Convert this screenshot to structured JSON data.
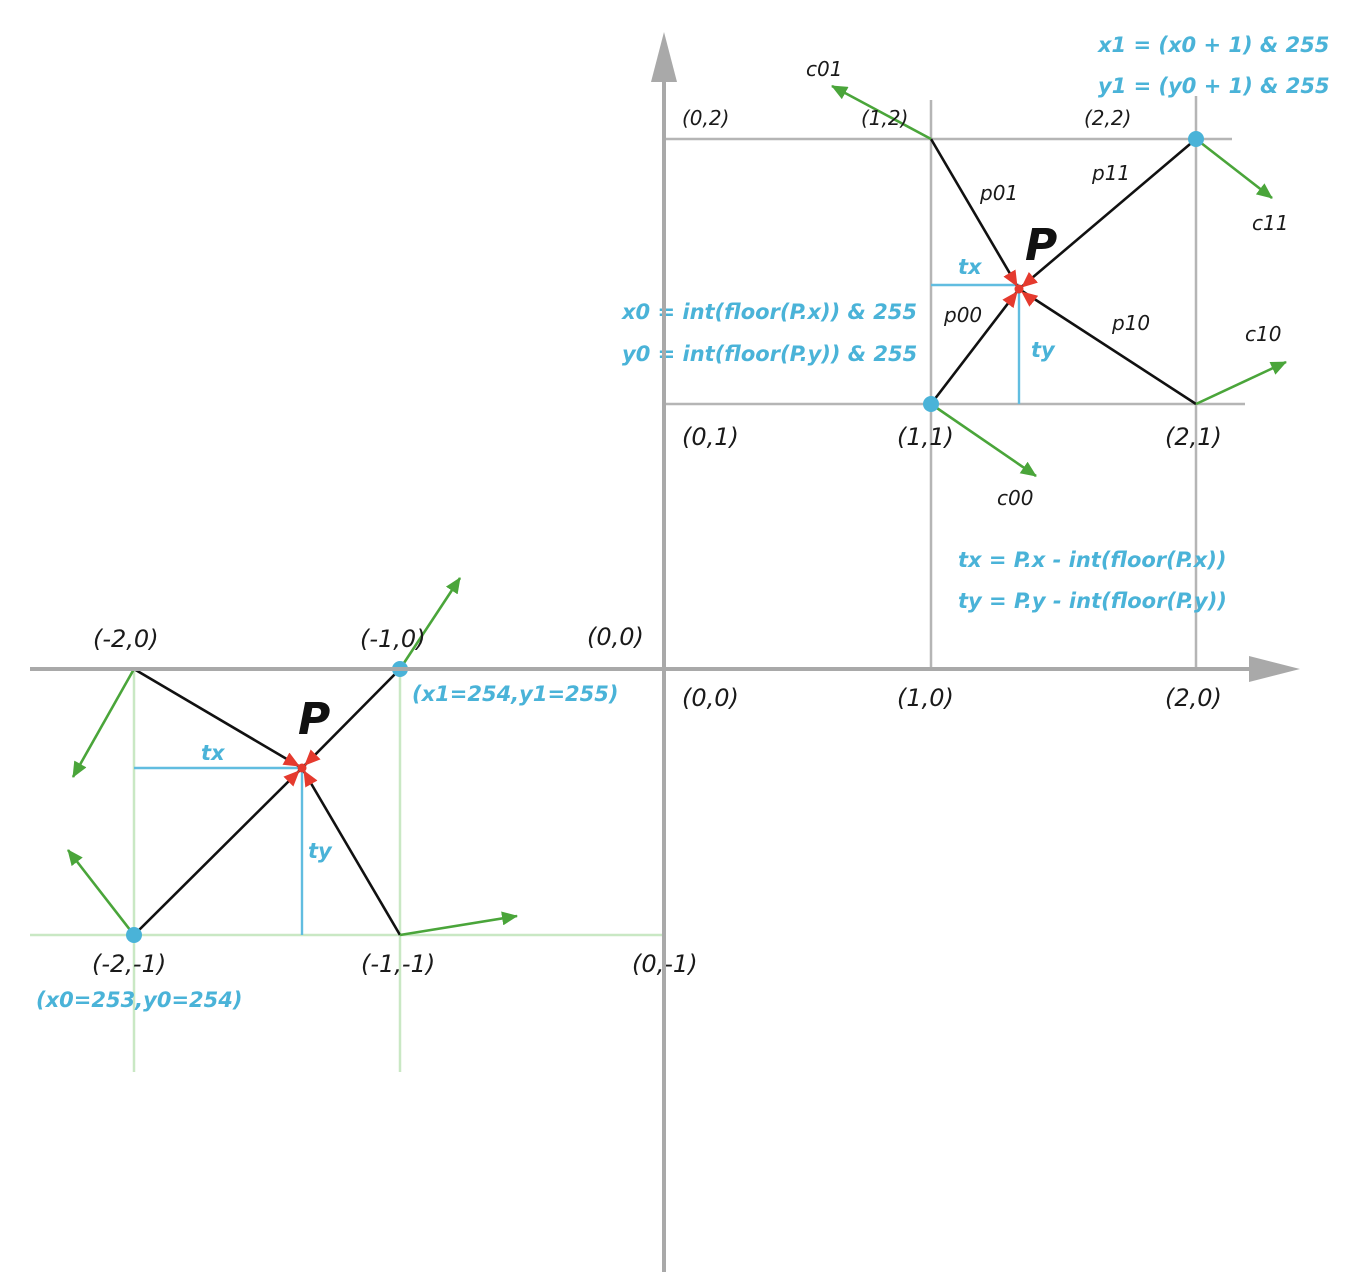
{
  "colors": {
    "axis": "#a9a9a9",
    "grid": "#b5b5b5",
    "grid_green": "#c9e8c4",
    "vector": "#111111",
    "gradient": "#4aa53a",
    "highlight": "#4ab3d8",
    "point": "#e53a2e"
  },
  "top_grid": {
    "labels": {
      "c01": "c01",
      "c11": "c11",
      "c10": "c10",
      "c00": "c00",
      "p01": "p01",
      "p11": "p11",
      "p00": "p00",
      "p10": "p10",
      "tx": "tx",
      "ty": "ty",
      "P": "P",
      "pt_0_2": "(0,2)",
      "pt_1_2": "(1,2)",
      "pt_2_2": "(2,2)",
      "pt_0_1": "(0,1)",
      "pt_1_1": "(1,1)",
      "pt_2_1": "(2,1)"
    },
    "formulas": {
      "x1": "x1 = (x0 + 1) & 255",
      "y1": "y1 = (y0 + 1) & 255",
      "x0": "x0 = int(floor(P.x)) & 255",
      "y0": "y0 = int(floor(P.y)) & 255",
      "tx": "tx = P.x - int(floor(P.x))",
      "ty": "ty = P.y - int(floor(P.y))"
    }
  },
  "axis_labels": {
    "origin_above": "(0,0)",
    "origin_below": "(0,0)",
    "pt_1_0": "(1,0)",
    "pt_2_0": "(2,0)",
    "pt_m2_0": "(-2,0)",
    "pt_m1_0": "(-1,0)"
  },
  "bottom_grid": {
    "labels": {
      "P": "P",
      "tx": "tx",
      "ty": "ty",
      "pt_m2_m1": "(-2,-1)",
      "pt_m1_m1": "(-1,-1)",
      "pt_0_m1": "(0,-1)"
    },
    "notes": {
      "x1y1": "(x1=254,y1=255)",
      "x0y0": "(x0=253,y0=254)"
    }
  }
}
